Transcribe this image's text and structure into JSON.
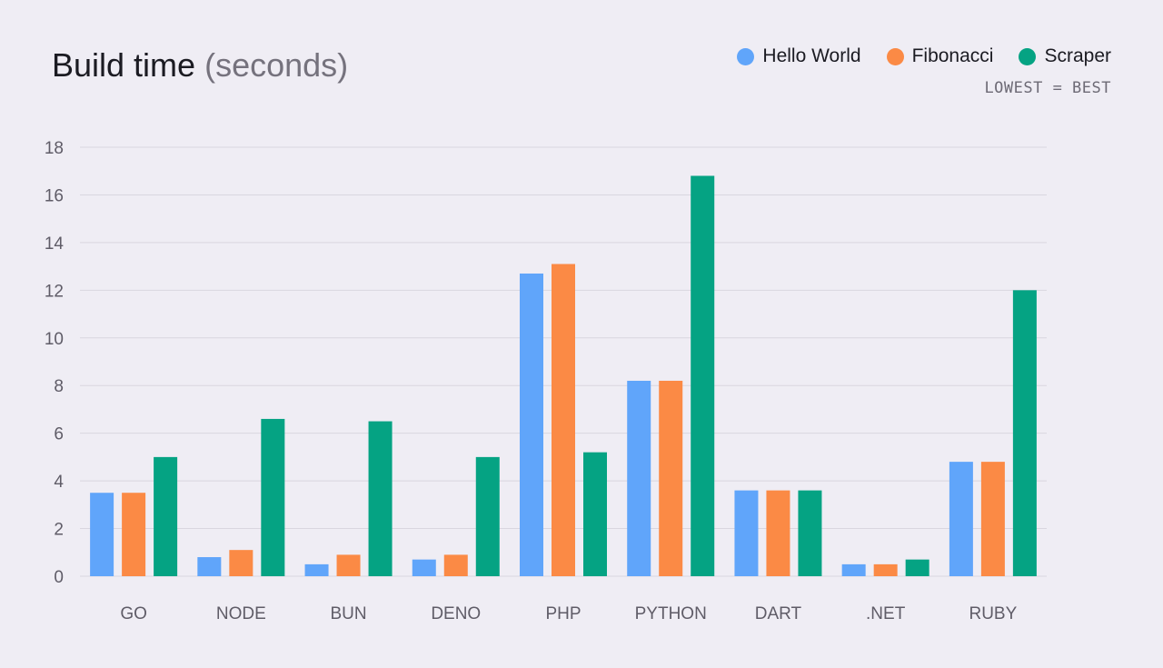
{
  "title": {
    "main": "Build time",
    "unit": "(seconds)"
  },
  "note": "LOWEST = BEST",
  "chart_data": {
    "type": "bar",
    "categories": [
      "GO",
      "NODE",
      "BUN",
      "DENO",
      "PHP",
      "PYTHON",
      "DART",
      ".NET",
      "RUBY"
    ],
    "series": [
      {
        "name": "Hello World",
        "color": "#60a5fa",
        "values": [
          3.5,
          0.8,
          0.5,
          0.7,
          12.7,
          8.2,
          3.6,
          0.5,
          4.8
        ]
      },
      {
        "name": "Fibonacci",
        "color": "#fb8a45",
        "values": [
          3.5,
          1.1,
          0.9,
          0.9,
          13.1,
          8.2,
          3.6,
          0.5,
          4.8
        ]
      },
      {
        "name": "Scraper",
        "color": "#05a383",
        "values": [
          5.0,
          6.6,
          6.5,
          5.0,
          5.2,
          16.8,
          3.6,
          0.7,
          12.0
        ]
      }
    ],
    "ylim": [
      0,
      18
    ],
    "yticks": [
      0,
      2,
      4,
      6,
      8,
      10,
      12,
      14,
      16,
      18
    ],
    "grid": true,
    "legend": "top-right"
  }
}
